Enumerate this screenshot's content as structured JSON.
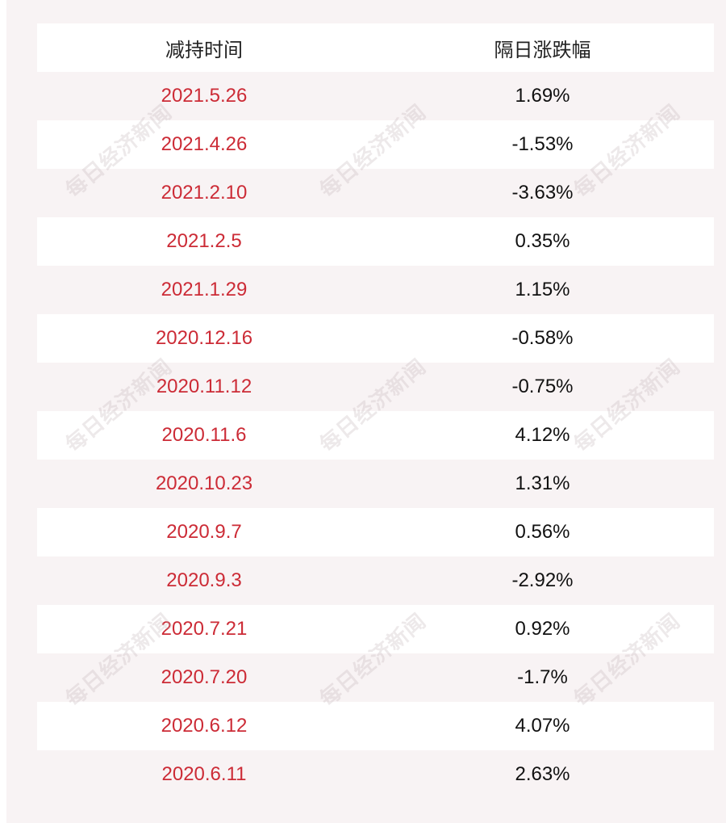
{
  "table": {
    "headers": [
      "减持时间",
      "隔日涨跌幅"
    ],
    "rows": [
      {
        "date": "2021.5.26",
        "change": "1.69%"
      },
      {
        "date": "2021.4.26",
        "change": "-1.53%"
      },
      {
        "date": "2021.2.10",
        "change": "-3.63%"
      },
      {
        "date": "2021.2.5",
        "change": "0.35%"
      },
      {
        "date": "2021.1.29",
        "change": "1.15%"
      },
      {
        "date": "2020.12.16",
        "change": "-0.58%"
      },
      {
        "date": "2020.11.12",
        "change": "-0.75%"
      },
      {
        "date": "2020.11.6",
        "change": "4.12%"
      },
      {
        "date": "2020.10.23",
        "change": "1.31%"
      },
      {
        "date": "2020.9.7",
        "change": "0.56%"
      },
      {
        "date": "2020.9.3",
        "change": "-2.92%"
      },
      {
        "date": "2020.7.21",
        "change": "0.92%"
      },
      {
        "date": "2020.7.20",
        "change": "-1.7%"
      },
      {
        "date": "2020.6.12",
        "change": "4.07%"
      },
      {
        "date": "2020.6.11",
        "change": "2.63%"
      }
    ]
  },
  "watermark": "每日经济新闻",
  "colors": {
    "date_text": "#cc2b36",
    "value_text": "#111111",
    "panel_background": "#f8f3f4",
    "stripe_row": "#ffffff"
  }
}
